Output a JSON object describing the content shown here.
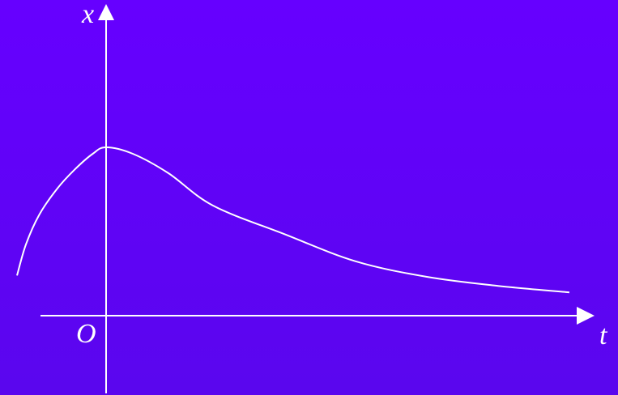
{
  "axes": {
    "vertical_label": "x",
    "horizontal_label": "t",
    "origin_label": "O"
  },
  "colors": {
    "background_top": "#6600ff",
    "background_bottom": "#5a06ee",
    "line": "#ffffff"
  },
  "chart_data": {
    "type": "line",
    "xlabel": "t",
    "ylabel": "x",
    "series": [
      {
        "x": [
          -1.0,
          -0.9,
          -0.75,
          -0.55,
          -0.35,
          -0.15,
          0.0,
          0.3,
          0.7,
          1.2,
          2.0,
          2.8,
          3.6,
          4.4,
          5.2
        ],
        "values": [
          0.31,
          0.55,
          0.78,
          0.98,
          1.13,
          1.25,
          1.3,
          1.25,
          1.1,
          0.85,
          0.63,
          0.42,
          0.3,
          0.23,
          0.18
        ]
      }
    ]
  }
}
